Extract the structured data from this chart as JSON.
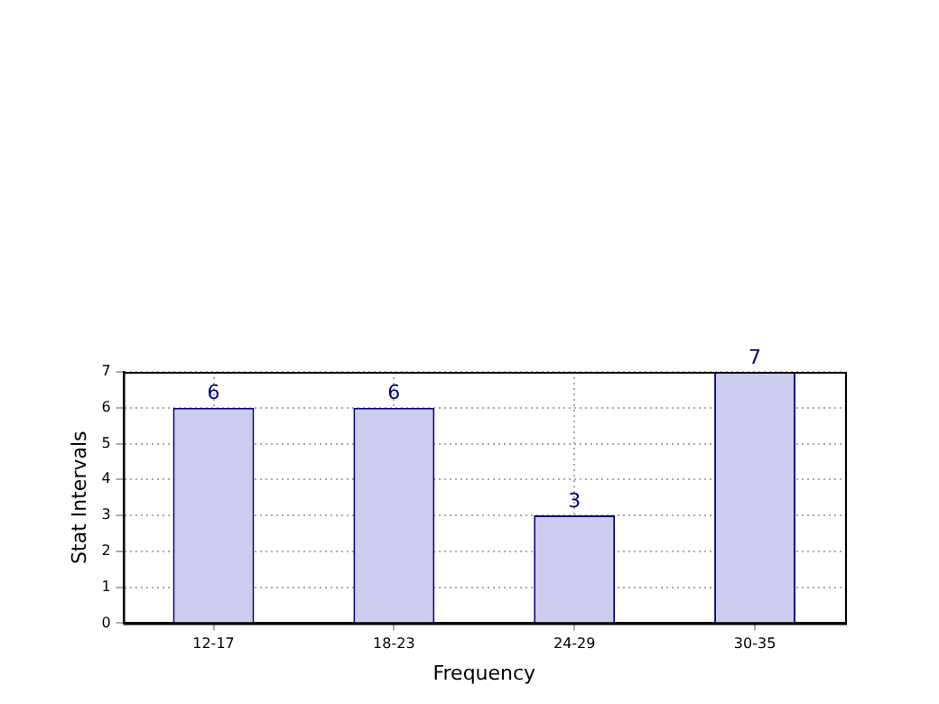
{
  "chart_data": {
    "type": "bar",
    "xlabel": "Frequency",
    "ylabel": "Stat Intervals",
    "categories": [
      "12-17",
      "18-23",
      "24-29",
      "30-35"
    ],
    "values": [
      6,
      6,
      3,
      7
    ],
    "color": "#ccccee",
    "ylim": [
      0,
      7
    ],
    "yticks": [
      0,
      1,
      2,
      3,
      4,
      5,
      6,
      7
    ],
    "grid": true,
    "data_labels": true
  }
}
